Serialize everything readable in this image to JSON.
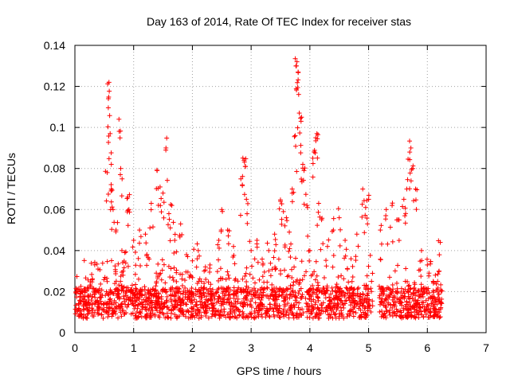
{
  "chart_data": {
    "type": "scatter",
    "title": "Day 163 of 2014, Rate Of TEC Index for receiver stas",
    "xlabel": "GPS time / hours",
    "ylabel": "ROTI / TECUs",
    "xlim": [
      0,
      7
    ],
    "ylim": [
      0,
      0.14
    ],
    "x_ticks": [
      0,
      1,
      2,
      3,
      4,
      5,
      6,
      7
    ],
    "x_tick_labels": [
      "0",
      "1",
      "2",
      "3",
      "4",
      "5",
      "6",
      "7"
    ],
    "y_ticks": [
      0,
      0.02,
      0.04,
      0.06,
      0.08,
      0.1,
      0.12,
      0.14
    ],
    "y_tick_labels": [
      "0",
      "0.02",
      "0.04",
      "0.06",
      "0.08",
      "0.1",
      "0.12",
      "0.14"
    ],
    "grid": true,
    "marker": "+",
    "color": "#ff0000",
    "data_gap_hours": [
      5.05,
      5.18
    ],
    "series": [
      {
        "name": "stas",
        "baseline_band": [
          0.007,
          0.022
        ],
        "x": [
          0.55,
          0.57,
          0.58,
          0.6,
          0.62,
          0.62,
          0.65,
          0.7,
          0.75,
          0.78,
          0.8,
          0.82,
          0.85,
          0.9,
          0.92,
          1.0,
          1.1,
          1.2,
          1.3,
          1.4,
          1.45,
          1.5,
          1.55,
          1.6,
          1.65,
          1.7,
          1.8,
          1.9,
          2.0,
          2.1,
          2.2,
          2.3,
          2.45,
          2.5,
          2.6,
          2.7,
          2.85,
          2.88,
          2.9,
          2.92,
          3.0,
          3.1,
          3.2,
          3.3,
          3.4,
          3.5,
          3.55,
          3.6,
          3.65,
          3.7,
          3.75,
          3.77,
          3.78,
          3.8,
          3.82,
          3.85,
          3.88,
          3.9,
          3.95,
          4.0,
          4.05,
          4.1,
          4.12,
          4.15,
          4.2,
          4.3,
          4.4,
          4.5,
          4.6,
          4.7,
          4.8,
          4.9,
          4.95,
          5.0,
          5.05,
          5.2,
          5.3,
          5.4,
          5.5,
          5.6,
          5.65,
          5.7,
          5.72,
          5.75,
          5.8,
          5.9,
          6.0,
          6.1,
          6.2,
          6.22
        ],
        "y": [
          0.078,
          0.114,
          0.122,
          0.097,
          0.082,
          0.07,
          0.06,
          0.05,
          0.104,
          0.08,
          0.04,
          0.028,
          0.039,
          0.066,
          0.06,
          0.045,
          0.05,
          0.048,
          0.063,
          0.079,
          0.071,
          0.068,
          0.09,
          0.058,
          0.062,
          0.045,
          0.053,
          0.038,
          0.035,
          0.04,
          0.03,
          0.033,
          0.045,
          0.06,
          0.05,
          0.042,
          0.072,
          0.084,
          0.081,
          0.065,
          0.04,
          0.045,
          0.033,
          0.04,
          0.048,
          0.064,
          0.059,
          0.056,
          0.049,
          0.07,
          0.096,
          0.13,
          0.132,
          0.127,
          0.107,
          0.103,
          0.082,
          0.079,
          0.062,
          0.04,
          0.085,
          0.095,
          0.097,
          0.063,
          0.055,
          0.042,
          0.05,
          0.056,
          0.045,
          0.036,
          0.048,
          0.07,
          0.061,
          0.065,
          0.025,
          0.05,
          0.06,
          0.062,
          0.055,
          0.065,
          0.07,
          0.088,
          0.09,
          0.08,
          0.07,
          0.04,
          0.033,
          0.025,
          0.03,
          0.044
        ]
      }
    ]
  }
}
